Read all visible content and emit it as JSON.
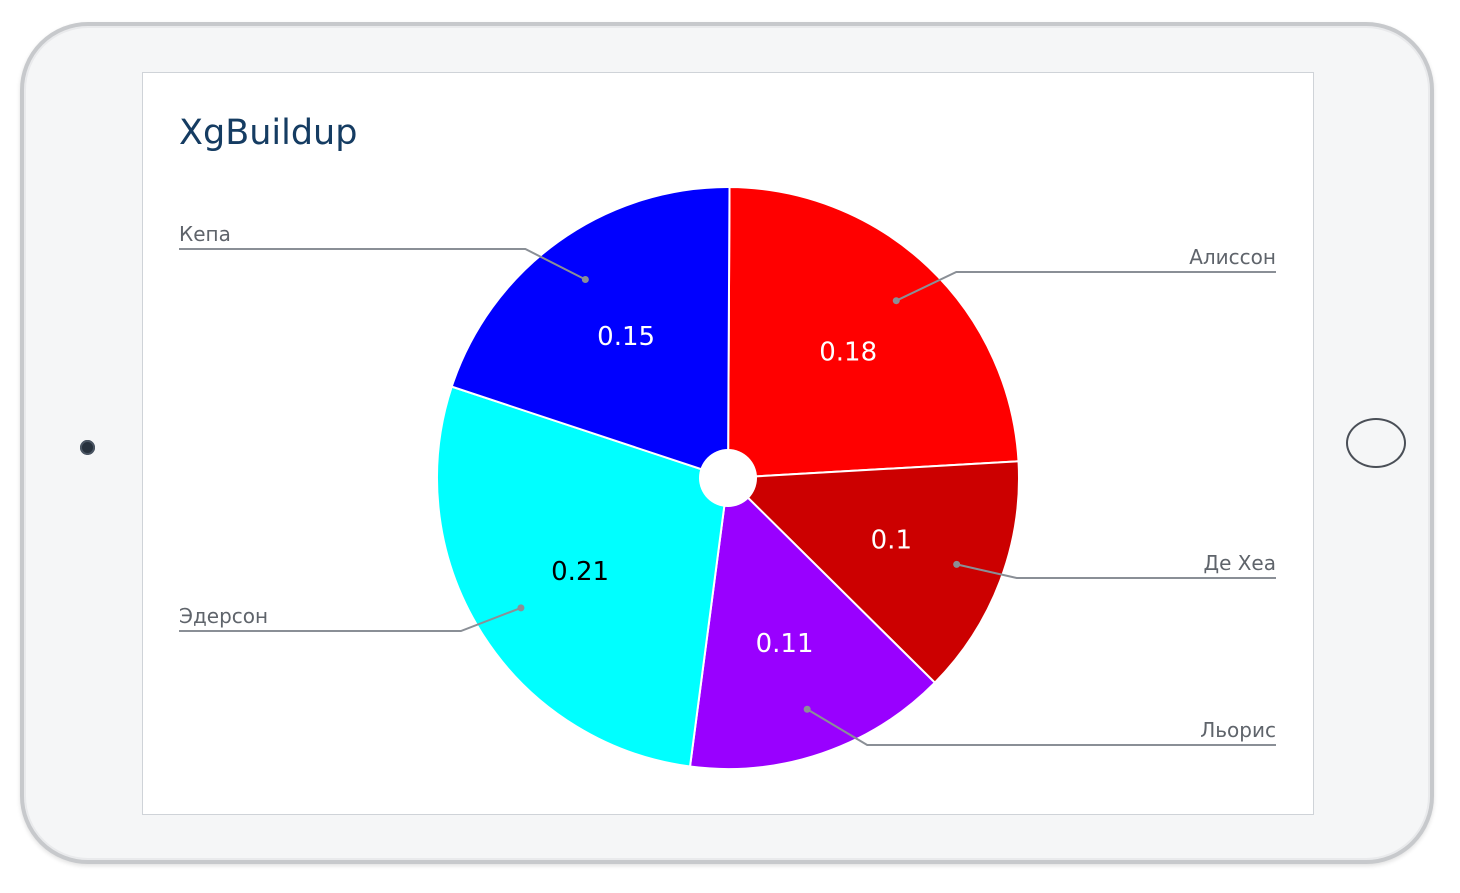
{
  "chart_data": {
    "type": "pie",
    "title": "XgBuildup",
    "categories": [
      "Алиссон",
      "Де Хеа",
      "Льорис",
      "Эдерсон",
      "Кепа"
    ],
    "values": [
      0.18,
      0.1,
      0.11,
      0.21,
      0.15
    ],
    "value_labels": [
      "0.18",
      "0.1",
      "0.11",
      "0.21",
      "0.15"
    ],
    "colors": [
      "#ff0000",
      "#cc0000",
      "#9900ff",
      "#00ffff",
      "#0000ff"
    ],
    "label_colors": [
      "#ffffff",
      "#ffffff",
      "#ffffff",
      "#000000",
      "#ffffff"
    ],
    "donut_hole": true,
    "legend": "none"
  }
}
